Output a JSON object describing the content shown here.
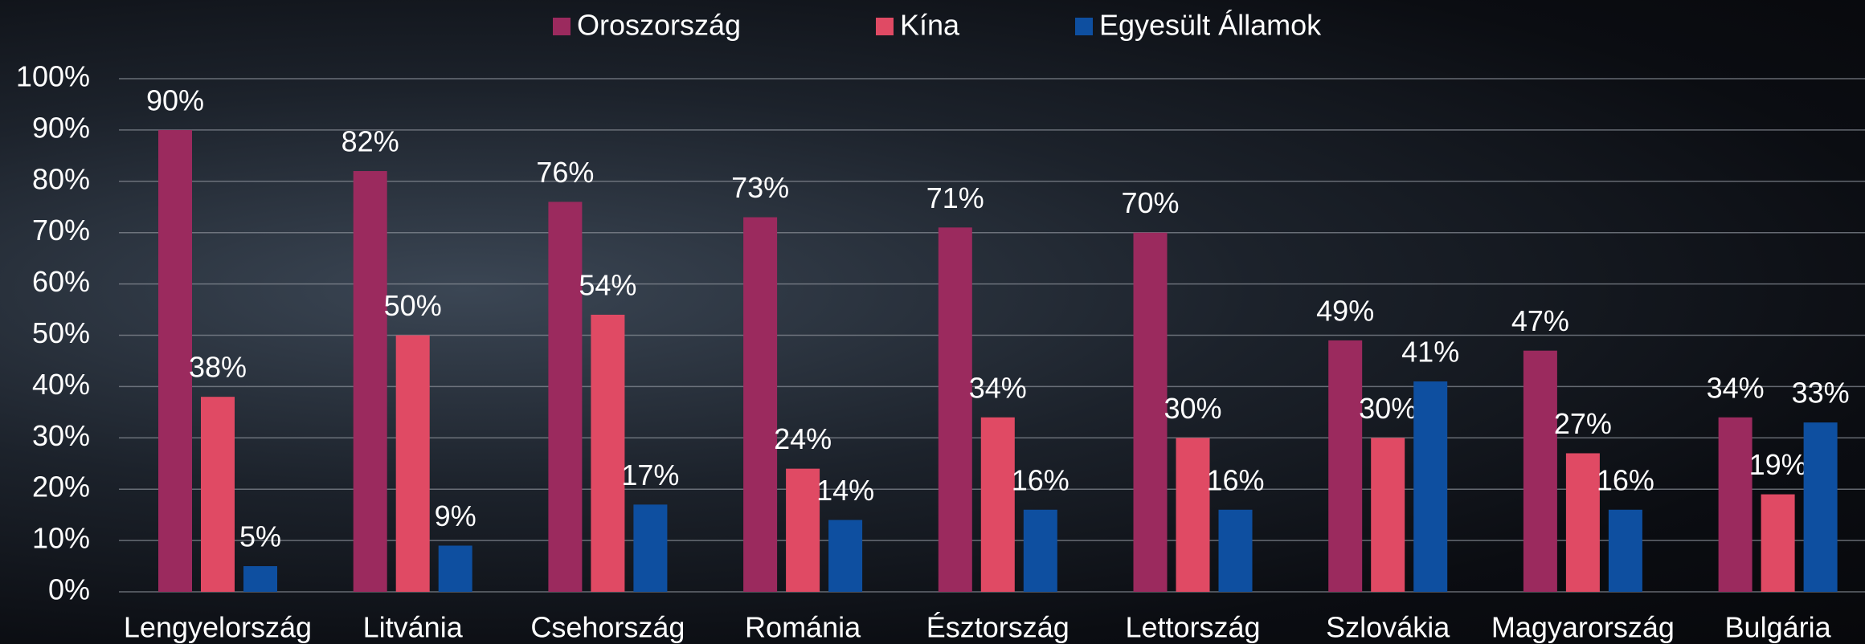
{
  "chart_data": {
    "type": "bar",
    "categories": [
      "Lengyelország",
      "Litvánia",
      "Csehország",
      "Románia",
      "Észtország",
      "Lettország",
      "Szlovákia",
      "Magyarország",
      "Bulgária"
    ],
    "series": [
      {
        "name": "Oroszország",
        "color": "#9b2a5e",
        "values": [
          90,
          82,
          76,
          73,
          71,
          70,
          49,
          47,
          34
        ],
        "value_labels": [
          "90%",
          "82%",
          "76%",
          "73%",
          "71%",
          "70%",
          "49%",
          "47%",
          "34%"
        ]
      },
      {
        "name": "Kína",
        "color": "#e04a64",
        "values": [
          38,
          50,
          54,
          24,
          34,
          30,
          30,
          27,
          19
        ],
        "value_labels": [
          "38%",
          "50%",
          "54%",
          "24%",
          "34%",
          "30%",
          "30%",
          "27%",
          "19%"
        ]
      },
      {
        "name": "Egyesült Államok",
        "color": "#0e4fa0",
        "values": [
          5,
          9,
          17,
          14,
          16,
          16,
          41,
          16,
          33
        ],
        "value_labels": [
          "5%",
          "9%",
          "17%",
          "14%",
          "16%",
          "16%",
          "41%",
          "16%",
          "33%"
        ]
      }
    ],
    "ylim": [
      0,
      100
    ],
    "yticks": [
      {
        "value": 0,
        "label": "0%"
      },
      {
        "value": 10,
        "label": "10%"
      },
      {
        "value": 20,
        "label": "20%"
      },
      {
        "value": 30,
        "label": "30%"
      },
      {
        "value": 40,
        "label": "40%"
      },
      {
        "value": 50,
        "label": "50%"
      },
      {
        "value": 60,
        "label": "60%"
      },
      {
        "value": 70,
        "label": "70%"
      },
      {
        "value": 80,
        "label": "80%"
      },
      {
        "value": 90,
        "label": "90%"
      },
      {
        "value": 100,
        "label": "100%"
      }
    ],
    "grid": true,
    "legend": "top"
  }
}
